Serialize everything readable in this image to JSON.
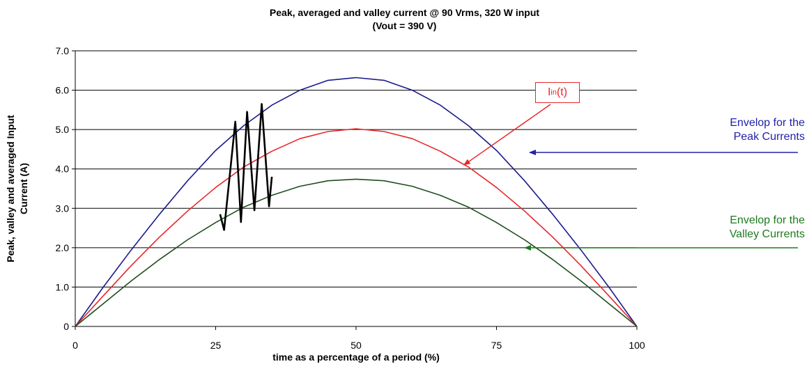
{
  "chart_data": {
    "type": "line",
    "title": "Peak, averaged and valley current @ 90 Vrms, 320 W input",
    "subtitle": "(Vout = 390 V)",
    "xlabel": "time as a percentage of a period (%)",
    "ylabel_line1": "Peak, valley and averaged Input",
    "ylabel_line2": "Current (A)",
    "xlim": [
      0,
      100
    ],
    "ylim": [
      0,
      7
    ],
    "x_ticks": [
      "0",
      "25",
      "50",
      "75",
      "100"
    ],
    "y_ticks": [
      "0",
      "1.0",
      "2.0",
      "3.0",
      "4.0",
      "5.0",
      "6.0",
      "7.0"
    ],
    "grid": "horizontal",
    "series": [
      {
        "color": "#1a1a8c",
        "x": [
          0,
          5,
          10,
          15,
          20,
          25,
          30,
          35,
          40,
          45,
          50,
          55,
          60,
          65,
          70,
          75,
          80,
          85,
          90,
          95,
          100
        ],
        "values": [
          0,
          1.0,
          1.95,
          2.85,
          3.7,
          4.47,
          5.1,
          5.62,
          6.0,
          6.25,
          6.32,
          6.25,
          6.0,
          5.62,
          5.1,
          4.47,
          3.7,
          2.85,
          1.95,
          1.0,
          0
        ]
      },
      {
        "color": "#e8262a",
        "x": [
          0,
          5,
          10,
          15,
          20,
          25,
          30,
          35,
          40,
          45,
          50,
          55,
          60,
          65,
          70,
          75,
          80,
          85,
          90,
          95,
          100
        ],
        "values": [
          0,
          0.78,
          1.55,
          2.27,
          2.93,
          3.53,
          4.05,
          4.45,
          4.77,
          4.95,
          5.02,
          4.95,
          4.77,
          4.45,
          4.05,
          3.53,
          2.93,
          2.27,
          1.55,
          0.78,
          0
        ]
      },
      {
        "color": "#1f4d1f",
        "x": [
          0,
          5,
          10,
          15,
          20,
          25,
          30,
          35,
          40,
          45,
          50,
          55,
          60,
          65,
          70,
          75,
          80,
          85,
          90,
          95,
          100
        ],
        "values": [
          0,
          0.58,
          1.16,
          1.7,
          2.2,
          2.64,
          3.03,
          3.33,
          3.56,
          3.7,
          3.74,
          3.7,
          3.56,
          3.33,
          3.03,
          2.64,
          2.2,
          1.7,
          1.16,
          0.58,
          0
        ]
      },
      {
        "color": "#000000",
        "x": [
          25.8,
          26.5,
          28.5,
          29.5,
          30.6,
          31.9,
          33.2,
          34.5,
          35.0
        ],
        "values": [
          2.85,
          2.45,
          5.2,
          2.65,
          5.45,
          2.95,
          5.65,
          3.05,
          3.8
        ]
      }
    ],
    "annotations": [
      {
        "label": "Iin(t)",
        "base": "I",
        "sub": "in",
        "tail": "(t)",
        "color": "#e8262a"
      },
      {
        "lines": [
          "Envelop for the",
          "Peak Currents"
        ],
        "color": "#2222aa"
      },
      {
        "lines": [
          "Envelop for the",
          "Valley Currents"
        ],
        "color": "#1e7a1e"
      }
    ]
  }
}
